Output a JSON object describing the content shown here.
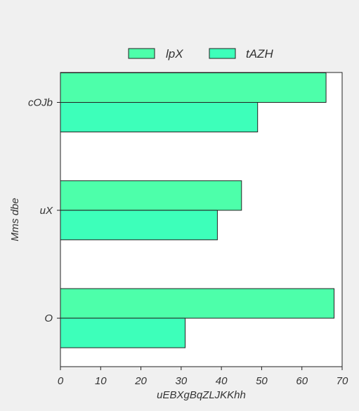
{
  "chart_data": {
    "type": "bar",
    "orientation": "horizontal",
    "categories": [
      "cOJb",
      "uX",
      "O"
    ],
    "series": [
      {
        "name": "lpX",
        "values": [
          66,
          45,
          68
        ],
        "color": "#4dffaa"
      },
      {
        "name": "tAZH",
        "values": [
          49,
          39,
          31
        ],
        "color": "#3dffba"
      }
    ],
    "xlabel": "uEBXgBqZLJKKhh",
    "ylabel": "Mms dbe",
    "xlim": [
      0,
      70
    ],
    "xticks": [
      0,
      10,
      20,
      30,
      40,
      50,
      60,
      70
    ],
    "grid": false,
    "legend_position": "top-center"
  }
}
